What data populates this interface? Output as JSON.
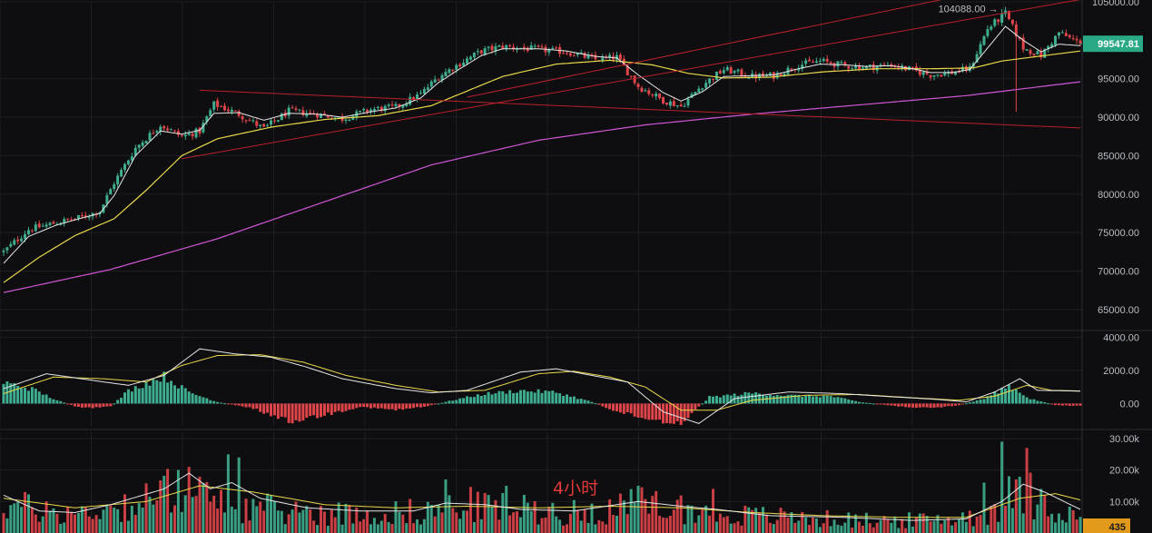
{
  "colors": {
    "background": "#0e0e10",
    "grid": "#1d1f25",
    "up": "#3fae90",
    "down": "#e0454a",
    "ma_short": "#e6e6e6",
    "ma_mid": "#e9d84a",
    "ma_long": "#d056d6",
    "trendline": "#b8212c",
    "macd_line": "#e6e6e6",
    "signal_line": "#e9d84a",
    "price_tag_bg": "#2aa986",
    "volume_tag_bg": "#e39a1a",
    "axis_text": "#b9bcc4"
  },
  "timeframe_label": "4小时",
  "chart_data": [
    {
      "type": "candlestick",
      "name": "price",
      "ylim": [
        62500,
        105000
      ],
      "yticks": [
        {
          "value": 105000,
          "label": "105000.00"
        },
        {
          "value": 95000,
          "label": "95000.00"
        },
        {
          "value": 90000,
          "label": "90000.00"
        },
        {
          "value": 85000,
          "label": "85000.00"
        },
        {
          "value": 80000,
          "label": "80000.00"
        },
        {
          "value": 75000,
          "label": "75000.00"
        },
        {
          "value": 70000,
          "label": "70000.00"
        },
        {
          "value": 65000,
          "label": "65000.00"
        }
      ],
      "last_price": 99547.81,
      "last_price_label": "99547.81",
      "high_marker": {
        "value": 104088,
        "label": "104088.00 →"
      },
      "anchors": [
        [
          0,
          72500
        ],
        [
          7,
          75400
        ],
        [
          15,
          76300
        ],
        [
          22,
          77000
        ],
        [
          27,
          77800
        ],
        [
          31,
          81500
        ],
        [
          37,
          86000
        ],
        [
          44,
          89000
        ],
        [
          50,
          87500
        ],
        [
          55,
          88200
        ],
        [
          59,
          91700
        ],
        [
          66,
          90400
        ],
        [
          73,
          88500
        ],
        [
          80,
          90800
        ],
        [
          88,
          90400
        ],
        [
          95,
          89800
        ],
        [
          103,
          91000
        ],
        [
          110,
          91300
        ],
        [
          117,
          93000
        ],
        [
          122,
          95300
        ],
        [
          128,
          97000
        ],
        [
          134,
          98600
        ],
        [
          140,
          99200
        ],
        [
          150,
          98800
        ],
        [
          158,
          98500
        ],
        [
          166,
          97500
        ],
        [
          172,
          97800
        ],
        [
          178,
          94000
        ],
        [
          185,
          92200
        ],
        [
          190,
          91400
        ],
        [
          196,
          94200
        ],
        [
          202,
          96200
        ],
        [
          210,
          95300
        ],
        [
          216,
          95400
        ],
        [
          223,
          96800
        ],
        [
          229,
          97300
        ],
        [
          236,
          96700
        ],
        [
          242,
          96500
        ],
        [
          249,
          96800
        ],
        [
          255,
          96100
        ],
        [
          260,
          95500
        ],
        [
          266,
          95800
        ],
        [
          271,
          96300
        ],
        [
          276,
          101500
        ],
        [
          281,
          103500
        ],
        [
          286,
          99000
        ],
        [
          291,
          98000
        ],
        [
          296,
          101000
        ],
        [
          302,
          99547.81
        ]
      ],
      "wicks": [
        {
          "index": 284,
          "low": 90700
        }
      ],
      "ma_short": {
        "color": "#e6e6e6",
        "values": [
          [
            0,
            71000
          ],
          [
            7,
            74500
          ],
          [
            15,
            76000
          ],
          [
            22,
            76900
          ],
          [
            27,
            77500
          ],
          [
            31,
            79800
          ],
          [
            37,
            85000
          ],
          [
            44,
            88200
          ],
          [
            50,
            87800
          ],
          [
            55,
            88300
          ],
          [
            59,
            90500
          ],
          [
            66,
            90600
          ],
          [
            73,
            89600
          ],
          [
            80,
            90500
          ],
          [
            88,
            90400
          ],
          [
            95,
            90000
          ],
          [
            103,
            90700
          ],
          [
            110,
            91200
          ],
          [
            117,
            92500
          ],
          [
            122,
            94500
          ],
          [
            128,
            96300
          ],
          [
            134,
            98000
          ],
          [
            140,
            98900
          ],
          [
            150,
            98900
          ],
          [
            158,
            98600
          ],
          [
            166,
            97900
          ],
          [
            172,
            97700
          ],
          [
            178,
            95500
          ],
          [
            185,
            93200
          ],
          [
            190,
            92100
          ],
          [
            196,
            93300
          ],
          [
            202,
            95300
          ],
          [
            210,
            95400
          ],
          [
            216,
            95500
          ],
          [
            223,
            96300
          ],
          [
            229,
            96900
          ],
          [
            236,
            96800
          ],
          [
            242,
            96600
          ],
          [
            249,
            96700
          ],
          [
            255,
            96300
          ],
          [
            260,
            95800
          ],
          [
            266,
            95800
          ],
          [
            271,
            96200
          ],
          [
            276,
            99000
          ],
          [
            281,
            101800
          ],
          [
            286,
            100000
          ],
          [
            291,
            98500
          ],
          [
            296,
            99500
          ],
          [
            302,
            99300
          ]
        ]
      },
      "ma_mid": {
        "color": "#e9d84a",
        "values": [
          [
            0,
            68500
          ],
          [
            10,
            71800
          ],
          [
            20,
            74600
          ],
          [
            31,
            76800
          ],
          [
            40,
            80500
          ],
          [
            50,
            85000
          ],
          [
            60,
            87200
          ],
          [
            75,
            88700
          ],
          [
            90,
            89700
          ],
          [
            105,
            90200
          ],
          [
            120,
            91500
          ],
          [
            130,
            93400
          ],
          [
            140,
            95300
          ],
          [
            155,
            96900
          ],
          [
            170,
            97400
          ],
          [
            182,
            96800
          ],
          [
            192,
            95700
          ],
          [
            202,
            95100
          ],
          [
            215,
            95200
          ],
          [
            230,
            95900
          ],
          [
            245,
            96300
          ],
          [
            260,
            96300
          ],
          [
            272,
            96400
          ],
          [
            280,
            97300
          ],
          [
            290,
            97900
          ],
          [
            302,
            98600
          ]
        ]
      },
      "ma_long": {
        "color": "#d056d6",
        "values": [
          [
            0,
            67200
          ],
          [
            30,
            70200
          ],
          [
            60,
            74200
          ],
          [
            90,
            79000
          ],
          [
            120,
            83800
          ],
          [
            150,
            87000
          ],
          [
            180,
            89000
          ],
          [
            210,
            90400
          ],
          [
            240,
            91600
          ],
          [
            270,
            92800
          ],
          [
            302,
            94600
          ]
        ]
      },
      "trendlines": [
        {
          "from": [
            55,
            93500
          ],
          "to": [
            302,
            88600
          ]
        },
        {
          "from": [
            50,
            84600
          ],
          "to": [
            302,
            105300
          ]
        },
        {
          "from": [
            130,
            92600
          ],
          "to": [
            302,
            109000
          ]
        }
      ]
    },
    {
      "type": "macd",
      "name": "MACD",
      "ylim": [
        -1400,
        4300
      ],
      "yticks": [
        {
          "value": 4000,
          "label": "4000.00"
        },
        {
          "value": 2000,
          "label": "2000.00"
        },
        {
          "value": 0,
          "label": "0.00"
        }
      ],
      "macd_line": [
        [
          0,
          900
        ],
        [
          12,
          1800
        ],
        [
          25,
          1400
        ],
        [
          35,
          1100
        ],
        [
          45,
          1700
        ],
        [
          55,
          3300
        ],
        [
          65,
          3000
        ],
        [
          75,
          2800
        ],
        [
          85,
          2200
        ],
        [
          95,
          1500
        ],
        [
          110,
          900
        ],
        [
          120,
          650
        ],
        [
          130,
          800
        ],
        [
          145,
          1900
        ],
        [
          155,
          2100
        ],
        [
          165,
          1700
        ],
        [
          175,
          1300
        ],
        [
          185,
          -500
        ],
        [
          195,
          -1200
        ],
        [
          205,
          300
        ],
        [
          220,
          700
        ],
        [
          235,
          600
        ],
        [
          250,
          400
        ],
        [
          262,
          250
        ],
        [
          270,
          100
        ],
        [
          278,
          700
        ],
        [
          285,
          1500
        ],
        [
          290,
          800
        ],
        [
          302,
          750
        ]
      ],
      "signal_line": [
        [
          0,
          600
        ],
        [
          14,
          1600
        ],
        [
          28,
          1500
        ],
        [
          40,
          1300
        ],
        [
          50,
          2300
        ],
        [
          60,
          2900
        ],
        [
          72,
          2950
        ],
        [
          84,
          2500
        ],
        [
          96,
          1700
        ],
        [
          110,
          1100
        ],
        [
          122,
          700
        ],
        [
          135,
          800
        ],
        [
          150,
          1800
        ],
        [
          160,
          1950
        ],
        [
          170,
          1600
        ],
        [
          180,
          1000
        ],
        [
          190,
          -400
        ],
        [
          200,
          -400
        ],
        [
          210,
          200
        ],
        [
          225,
          500
        ],
        [
          240,
          550
        ],
        [
          255,
          350
        ],
        [
          268,
          200
        ],
        [
          278,
          450
        ],
        [
          287,
          1100
        ],
        [
          294,
          800
        ],
        [
          302,
          760
        ]
      ],
      "histogram": [
        [
          0,
          1300
        ],
        [
          8,
          900
        ],
        [
          15,
          200
        ],
        [
          22,
          -300
        ],
        [
          30,
          -200
        ],
        [
          35,
          800
        ],
        [
          45,
          1700
        ],
        [
          52,
          700
        ],
        [
          60,
          100
        ],
        [
          70,
          -300
        ],
        [
          80,
          -1100
        ],
        [
          90,
          -700
        ],
        [
          100,
          -200
        ],
        [
          110,
          -400
        ],
        [
          118,
          -200
        ],
        [
          128,
          300
        ],
        [
          135,
          600
        ],
        [
          145,
          800
        ],
        [
          155,
          700
        ],
        [
          165,
          100
        ],
        [
          172,
          -500
        ],
        [
          182,
          -1000
        ],
        [
          190,
          -1200
        ],
        [
          198,
          400
        ],
        [
          210,
          650
        ],
        [
          220,
          500
        ],
        [
          232,
          450
        ],
        [
          240,
          100
        ],
        [
          250,
          -150
        ],
        [
          260,
          -300
        ],
        [
          268,
          -100
        ],
        [
          275,
          300
        ],
        [
          282,
          1100
        ],
        [
          288,
          300
        ],
        [
          295,
          -100
        ],
        [
          302,
          -150
        ]
      ]
    },
    {
      "type": "volume",
      "name": "Volume",
      "ylim": [
        0,
        32000
      ],
      "yticks": [
        {
          "value": 30000,
          "label": "30.00k"
        },
        {
          "value": 20000,
          "label": "20.00k"
        },
        {
          "value": 10000,
          "label": "10.00k"
        }
      ],
      "last_volume_label": "435",
      "base_levels": [
        [
          0,
          9000
        ],
        [
          20,
          6000
        ],
        [
          40,
          10000
        ],
        [
          50,
          15000
        ],
        [
          60,
          9000
        ],
        [
          80,
          7000
        ],
        [
          100,
          6000
        ],
        [
          120,
          7000
        ],
        [
          130,
          9000
        ],
        [
          140,
          8000
        ],
        [
          160,
          6500
        ],
        [
          180,
          9000
        ],
        [
          190,
          8000
        ],
        [
          200,
          6000
        ],
        [
          220,
          5000
        ],
        [
          240,
          4000
        ],
        [
          260,
          4000
        ],
        [
          275,
          6000
        ],
        [
          285,
          14000
        ],
        [
          292,
          10000
        ],
        [
          302,
          4000
        ]
      ],
      "spikes": [
        [
          49,
          20000
        ],
        [
          52,
          21000
        ],
        [
          63,
          25000
        ],
        [
          66,
          24000
        ],
        [
          124,
          17000
        ],
        [
          141,
          15000
        ],
        [
          178,
          15000
        ],
        [
          199,
          14000
        ],
        [
          275,
          16000
        ],
        [
          280,
          29000
        ],
        [
          284,
          17000
        ],
        [
          287,
          27000
        ],
        [
          291,
          14000
        ]
      ],
      "ma_fast": [
        [
          0,
          12000
        ],
        [
          10,
          7000
        ],
        [
          20,
          6500
        ],
        [
          30,
          9000
        ],
        [
          45,
          14000
        ],
        [
          52,
          19000
        ],
        [
          58,
          14000
        ],
        [
          64,
          16000
        ],
        [
          72,
          11000
        ],
        [
          85,
          8000
        ],
        [
          100,
          7000
        ],
        [
          115,
          7000
        ],
        [
          124,
          9500
        ],
        [
          135,
          9000
        ],
        [
          145,
          7500
        ],
        [
          160,
          7000
        ],
        [
          178,
          10000
        ],
        [
          190,
          8500
        ],
        [
          200,
          7500
        ],
        [
          215,
          5500
        ],
        [
          235,
          5000
        ],
        [
          255,
          4000
        ],
        [
          270,
          4500
        ],
        [
          280,
          10000
        ],
        [
          286,
          15500
        ],
        [
          292,
          13000
        ],
        [
          302,
          7500
        ]
      ],
      "ma_slow": [
        [
          0,
          11000
        ],
        [
          20,
          8000
        ],
        [
          40,
          10000
        ],
        [
          55,
          15000
        ],
        [
          70,
          13000
        ],
        [
          90,
          9000
        ],
        [
          110,
          8000
        ],
        [
          130,
          8500
        ],
        [
          150,
          8000
        ],
        [
          170,
          8500
        ],
        [
          190,
          8000
        ],
        [
          210,
          6500
        ],
        [
          230,
          5500
        ],
        [
          250,
          5000
        ],
        [
          270,
          5000
        ],
        [
          285,
          11000
        ],
        [
          295,
          12500
        ],
        [
          302,
          10500
        ]
      ]
    }
  ]
}
